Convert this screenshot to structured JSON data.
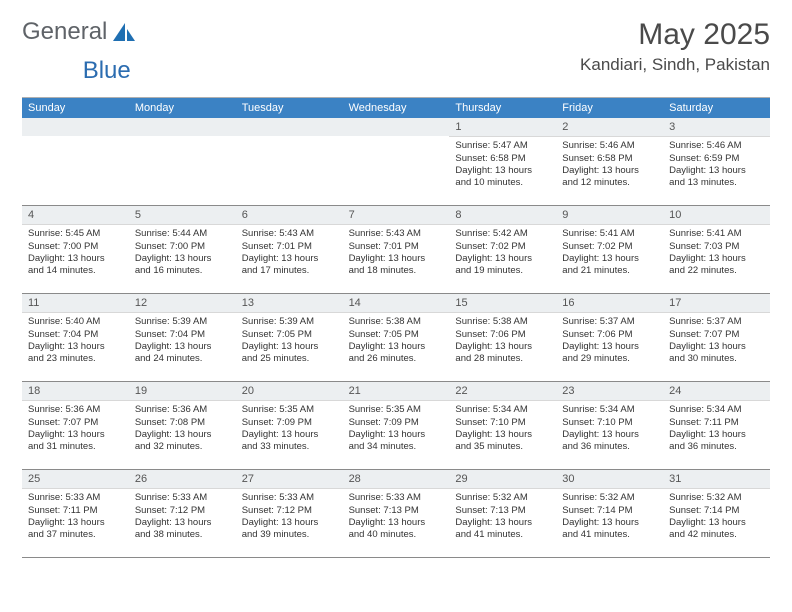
{
  "logo": {
    "word1": "General",
    "word2": "Blue"
  },
  "title": "May 2025",
  "location": "Kandiari, Sindh, Pakistan",
  "colors": {
    "header_bg": "#3b82c4",
    "header_text": "#ffffff",
    "band_bg": "#eceff1",
    "border": "#8a8a8a",
    "text": "#333333",
    "logo_gray": "#5f6368",
    "logo_blue": "#2b6cb0"
  },
  "weekdays": [
    "Sunday",
    "Monday",
    "Tuesday",
    "Wednesday",
    "Thursday",
    "Friday",
    "Saturday"
  ],
  "weeks": [
    [
      null,
      null,
      null,
      null,
      {
        "n": "1",
        "sr": "5:47 AM",
        "ss": "6:58 PM",
        "dl": "13 hours and 10 minutes."
      },
      {
        "n": "2",
        "sr": "5:46 AM",
        "ss": "6:58 PM",
        "dl": "13 hours and 12 minutes."
      },
      {
        "n": "3",
        "sr": "5:46 AM",
        "ss": "6:59 PM",
        "dl": "13 hours and 13 minutes."
      }
    ],
    [
      {
        "n": "4",
        "sr": "5:45 AM",
        "ss": "7:00 PM",
        "dl": "13 hours and 14 minutes."
      },
      {
        "n": "5",
        "sr": "5:44 AM",
        "ss": "7:00 PM",
        "dl": "13 hours and 16 minutes."
      },
      {
        "n": "6",
        "sr": "5:43 AM",
        "ss": "7:01 PM",
        "dl": "13 hours and 17 minutes."
      },
      {
        "n": "7",
        "sr": "5:43 AM",
        "ss": "7:01 PM",
        "dl": "13 hours and 18 minutes."
      },
      {
        "n": "8",
        "sr": "5:42 AM",
        "ss": "7:02 PM",
        "dl": "13 hours and 19 minutes."
      },
      {
        "n": "9",
        "sr": "5:41 AM",
        "ss": "7:02 PM",
        "dl": "13 hours and 21 minutes."
      },
      {
        "n": "10",
        "sr": "5:41 AM",
        "ss": "7:03 PM",
        "dl": "13 hours and 22 minutes."
      }
    ],
    [
      {
        "n": "11",
        "sr": "5:40 AM",
        "ss": "7:04 PM",
        "dl": "13 hours and 23 minutes."
      },
      {
        "n": "12",
        "sr": "5:39 AM",
        "ss": "7:04 PM",
        "dl": "13 hours and 24 minutes."
      },
      {
        "n": "13",
        "sr": "5:39 AM",
        "ss": "7:05 PM",
        "dl": "13 hours and 25 minutes."
      },
      {
        "n": "14",
        "sr": "5:38 AM",
        "ss": "7:05 PM",
        "dl": "13 hours and 26 minutes."
      },
      {
        "n": "15",
        "sr": "5:38 AM",
        "ss": "7:06 PM",
        "dl": "13 hours and 28 minutes."
      },
      {
        "n": "16",
        "sr": "5:37 AM",
        "ss": "7:06 PM",
        "dl": "13 hours and 29 minutes."
      },
      {
        "n": "17",
        "sr": "5:37 AM",
        "ss": "7:07 PM",
        "dl": "13 hours and 30 minutes."
      }
    ],
    [
      {
        "n": "18",
        "sr": "5:36 AM",
        "ss": "7:07 PM",
        "dl": "13 hours and 31 minutes."
      },
      {
        "n": "19",
        "sr": "5:36 AM",
        "ss": "7:08 PM",
        "dl": "13 hours and 32 minutes."
      },
      {
        "n": "20",
        "sr": "5:35 AM",
        "ss": "7:09 PM",
        "dl": "13 hours and 33 minutes."
      },
      {
        "n": "21",
        "sr": "5:35 AM",
        "ss": "7:09 PM",
        "dl": "13 hours and 34 minutes."
      },
      {
        "n": "22",
        "sr": "5:34 AM",
        "ss": "7:10 PM",
        "dl": "13 hours and 35 minutes."
      },
      {
        "n": "23",
        "sr": "5:34 AM",
        "ss": "7:10 PM",
        "dl": "13 hours and 36 minutes."
      },
      {
        "n": "24",
        "sr": "5:34 AM",
        "ss": "7:11 PM",
        "dl": "13 hours and 36 minutes."
      }
    ],
    [
      {
        "n": "25",
        "sr": "5:33 AM",
        "ss": "7:11 PM",
        "dl": "13 hours and 37 minutes."
      },
      {
        "n": "26",
        "sr": "5:33 AM",
        "ss": "7:12 PM",
        "dl": "13 hours and 38 minutes."
      },
      {
        "n": "27",
        "sr": "5:33 AM",
        "ss": "7:12 PM",
        "dl": "13 hours and 39 minutes."
      },
      {
        "n": "28",
        "sr": "5:33 AM",
        "ss": "7:13 PM",
        "dl": "13 hours and 40 minutes."
      },
      {
        "n": "29",
        "sr": "5:32 AM",
        "ss": "7:13 PM",
        "dl": "13 hours and 41 minutes."
      },
      {
        "n": "30",
        "sr": "5:32 AM",
        "ss": "7:14 PM",
        "dl": "13 hours and 41 minutes."
      },
      {
        "n": "31",
        "sr": "5:32 AM",
        "ss": "7:14 PM",
        "dl": "13 hours and 42 minutes."
      }
    ]
  ],
  "labels": {
    "sunrise": "Sunrise: ",
    "sunset": "Sunset: ",
    "daylight": "Daylight: "
  }
}
